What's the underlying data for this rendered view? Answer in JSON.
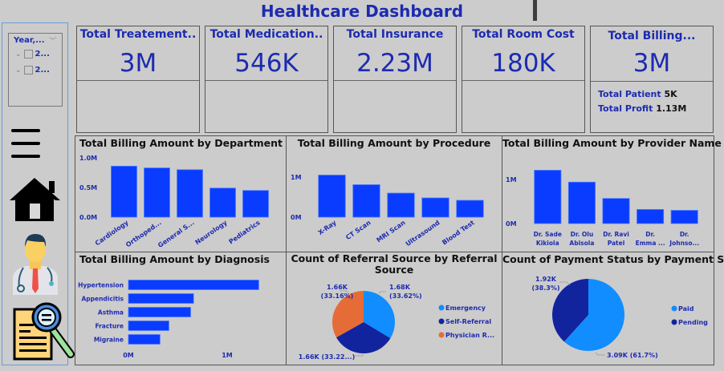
{
  "header": {
    "title": "Healthcare Dashboard"
  },
  "slicer": {
    "header": "Year,...",
    "items": [
      {
        "label": "2..."
      },
      {
        "label": "2..."
      }
    ]
  },
  "sidebar": {
    "icons": [
      "menu-icon",
      "home-icon",
      "doctor-icon",
      "report-search-icon"
    ]
  },
  "kpis": [
    {
      "title": "Total Treatement..",
      "value": "3M"
    },
    {
      "title": "Total Medication..",
      "value": "546K"
    },
    {
      "title": "Total Insurance",
      "value": "2.23M"
    },
    {
      "title": "Total Room Cost",
      "value": "180K"
    },
    {
      "title": "Total Billing...",
      "value": "3M",
      "extras": [
        {
          "label": "Total Patient",
          "value": "5K"
        },
        {
          "label": "Total Profit",
          "value": "1.13M"
        }
      ]
    }
  ],
  "colors": {
    "accent_text": "#1d2bb0",
    "bar": "#0a3cff",
    "emergency": "#118dff",
    "self_referral": "#12239e",
    "physician": "#e66c37",
    "paid": "#118dff",
    "pending": "#12239e"
  },
  "chart_data": [
    {
      "id": "department",
      "type": "bar",
      "title": "Total Billing Amount by Department",
      "categories": [
        "Cardiology",
        "Orthoped...",
        "General S...",
        "Neurology",
        "Pediatrics"
      ],
      "values": [
        0.86,
        0.83,
        0.8,
        0.49,
        0.45
      ],
      "unit": "M",
      "yticks": [
        "0.0M",
        "0.5M",
        "1.0M"
      ],
      "ylim": [
        0,
        1.0
      ],
      "xlabel": "",
      "ylabel": ""
    },
    {
      "id": "procedure",
      "type": "bar",
      "title": "Total Billing Amount by Procedure",
      "categories": [
        "X-Ray",
        "CT Scan",
        "MRI Scan",
        "Ultrasound",
        "Blood Test"
      ],
      "values": [
        1.05,
        0.81,
        0.6,
        0.48,
        0.42
      ],
      "unit": "M",
      "yticks": [
        "0M",
        "1M"
      ],
      "ylim": [
        0,
        1.0
      ],
      "xlabel": "",
      "ylabel": ""
    },
    {
      "id": "provider",
      "type": "bar",
      "title": "Total Billing Amount by Provider Name",
      "categories": [
        "Dr. Sade Kikiola",
        "Dr. Olu Abisola",
        "Dr. Ravi Patel",
        "Dr. Emma ...",
        "Dr. Johnso..."
      ],
      "category_lines": [
        [
          "Dr. Sade",
          "Kikiola"
        ],
        [
          "Dr. Olu",
          "Abisola"
        ],
        [
          "Dr. Ravi",
          "Patel"
        ],
        [
          "Dr.",
          "Emma ..."
        ],
        [
          "Dr.",
          "Johnso..."
        ]
      ],
      "values": [
        1.21,
        0.94,
        0.57,
        0.32,
        0.3
      ],
      "unit": "M",
      "yticks": [
        "0M",
        "1M"
      ],
      "ylim": [
        0,
        1.0
      ],
      "xlabel": "",
      "ylabel": ""
    },
    {
      "id": "diagnosis",
      "type": "bar",
      "orientation": "horizontal",
      "title": "Total Billing Amount by Diagnosis",
      "categories": [
        "Hypertension",
        "Appendicitis",
        "Asthma",
        "Fracture",
        "Migraine"
      ],
      "values": [
        1.32,
        0.66,
        0.63,
        0.41,
        0.32
      ],
      "unit": "M",
      "xticks": [
        "0M",
        "1M"
      ],
      "xlim": [
        0,
        1.0
      ],
      "xlabel": "",
      "ylabel": ""
    },
    {
      "id": "referral",
      "type": "pie",
      "title": "Count of Referral Source by Referral Source",
      "title_lines": [
        "Count of Referral Source by Referral",
        "Source"
      ],
      "slices": [
        {
          "name": "Emergency",
          "value": 1.68,
          "percent": 33.62,
          "label": "1.68K",
          "pct_label": "(33.62%)"
        },
        {
          "name": "Self-Referral",
          "value": 1.66,
          "percent": 33.22,
          "label": "1.66K (33.22...)"
        },
        {
          "name": "Physician R...",
          "value": 1.66,
          "percent": 33.16,
          "label": "1.66K",
          "pct_label": "(33.16%)"
        }
      ],
      "legend": "right"
    },
    {
      "id": "payment",
      "type": "pie",
      "title": "Count of Payment Status by Payment Status",
      "slices": [
        {
          "name": "Paid",
          "value": 3.09,
          "percent": 61.7,
          "label": "3.09K (61.7%)"
        },
        {
          "name": "Pending",
          "value": 1.92,
          "percent": 38.3,
          "label": "1.92K",
          "pct_label": "(38.3%)"
        }
      ],
      "legend": "right"
    }
  ]
}
